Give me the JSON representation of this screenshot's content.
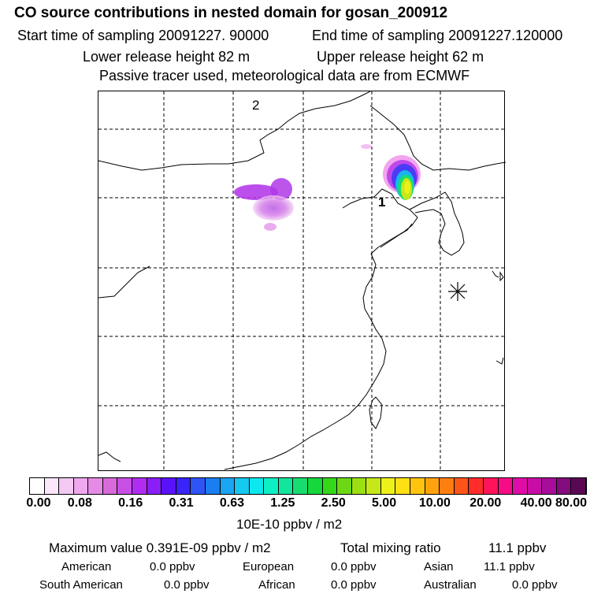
{
  "header": {
    "title": "CO  source contributions in nested domain for gosan_200912",
    "start_label": "Start time of sampling 20091227. 90000",
    "end_label": "End time of sampling 20091227.120000",
    "lower_label": "Lower release height   82 m",
    "upper_label": "Upper release height   62 m",
    "info": "Passive tracer used, meteorological data are from ECMWF"
  },
  "map": {
    "markers": [
      {
        "label": "2"
      },
      {
        "label": "1"
      }
    ],
    "receptor_symbol": "asterisk-icon"
  },
  "colorbar": {
    "colors": [
      "#ffffff",
      "#fbe6fb",
      "#f4c9f4",
      "#eea8ee",
      "#e58be5",
      "#d96ad9",
      "#c84fe6",
      "#b02cf0",
      "#8a1ef7",
      "#5a12fa",
      "#3a24f8",
      "#2e54f5",
      "#1a7ef0",
      "#1aa4f2",
      "#14c8f0",
      "#0ce8ee",
      "#0ef0c4",
      "#12e69c",
      "#18dc70",
      "#14d83c",
      "#34d818",
      "#6cd814",
      "#9ce014",
      "#c6e818",
      "#eef01a",
      "#ffe014",
      "#ffc40e",
      "#ffa20c",
      "#ff7e10",
      "#ff5418",
      "#ff2c2a",
      "#ff145a",
      "#f50c86",
      "#e00ca8",
      "#c80ca6",
      "#a80c9a",
      "#820c7c",
      "#5a0854"
    ],
    "tick_labels": [
      "0.00",
      "0.08",
      "0.16",
      "0.31",
      "0.63",
      "1.25",
      "2.50",
      "5.00",
      "10.00",
      "20.00",
      "40.00",
      "80.00"
    ],
    "units": "10E-10 ppbv / m2"
  },
  "stats": {
    "max_label": "Maximum value  0.391E-09 ppbv / m2",
    "total_label": "Total mixing ratio",
    "total_value": "11.1 ppbv",
    "rows": [
      [
        {
          "name": "American",
          "value": "0.0 ppbv"
        },
        {
          "name": "European",
          "value": "0.0 ppbv"
        },
        {
          "name": "Asian",
          "value": "11.1 ppbv"
        }
      ],
      [
        {
          "name": "South American",
          "value": "0.0 ppbv"
        },
        {
          "name": "African",
          "value": "0.0 ppbv"
        },
        {
          "name": "Australian",
          "value": "0.0 ppbv"
        }
      ]
    ]
  }
}
